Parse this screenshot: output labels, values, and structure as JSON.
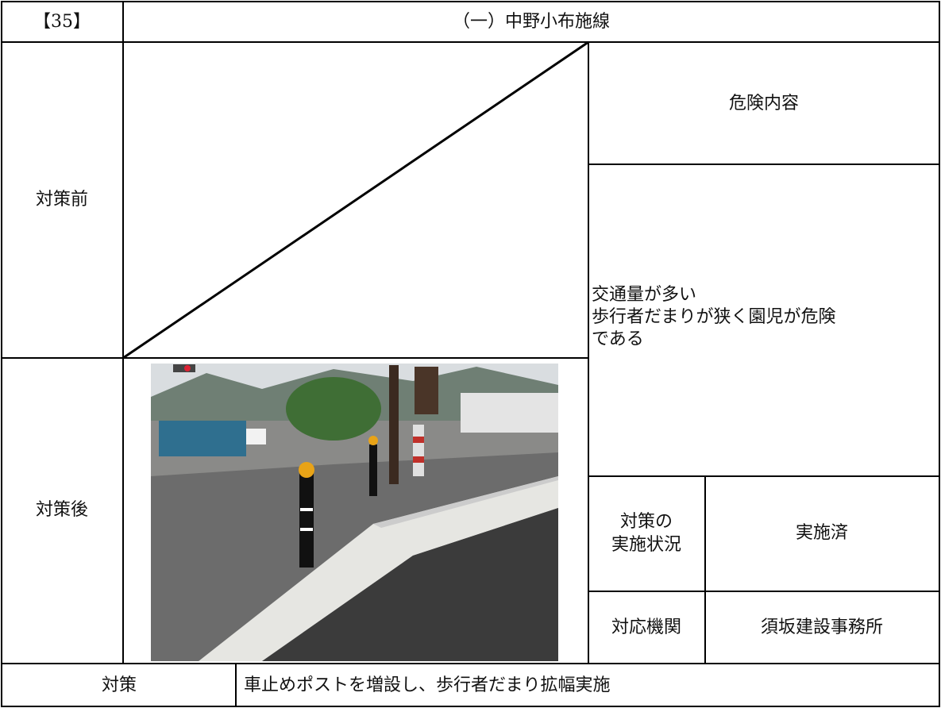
{
  "header": {
    "number": "【35】",
    "title": "（一）中野小布施線"
  },
  "rows": {
    "before": "対策前",
    "after": "対策後"
  },
  "risk": {
    "heading": "危険内容",
    "lines": [
      "交通量が多い",
      "歩行者だまりが狭く園児が危険",
      "である"
    ]
  },
  "status": {
    "label_lines": [
      "対策の",
      "実施状況"
    ],
    "value": "実施済"
  },
  "agency": {
    "label": "対応機関",
    "value": "須坂建設事務所"
  },
  "measure": {
    "label": "対策",
    "text": "車止めポストを増設し、歩行者だまり拡幅実施"
  }
}
